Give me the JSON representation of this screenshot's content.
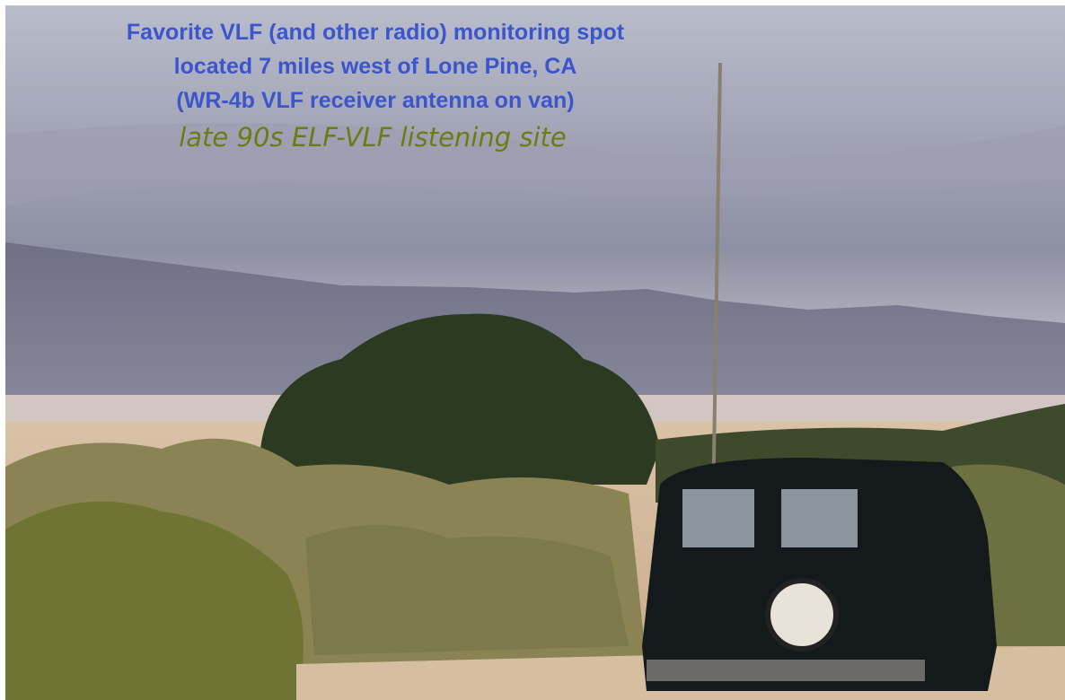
{
  "caption": {
    "lines": [
      "Favorite VLF (and other radio) monitoring spot",
      "located 7 miles west of Lone Pine, CA",
      "(WR-4b VLF receiver antenna on van)"
    ],
    "subtitle": "late 90s ELF-VLF listening site"
  }
}
